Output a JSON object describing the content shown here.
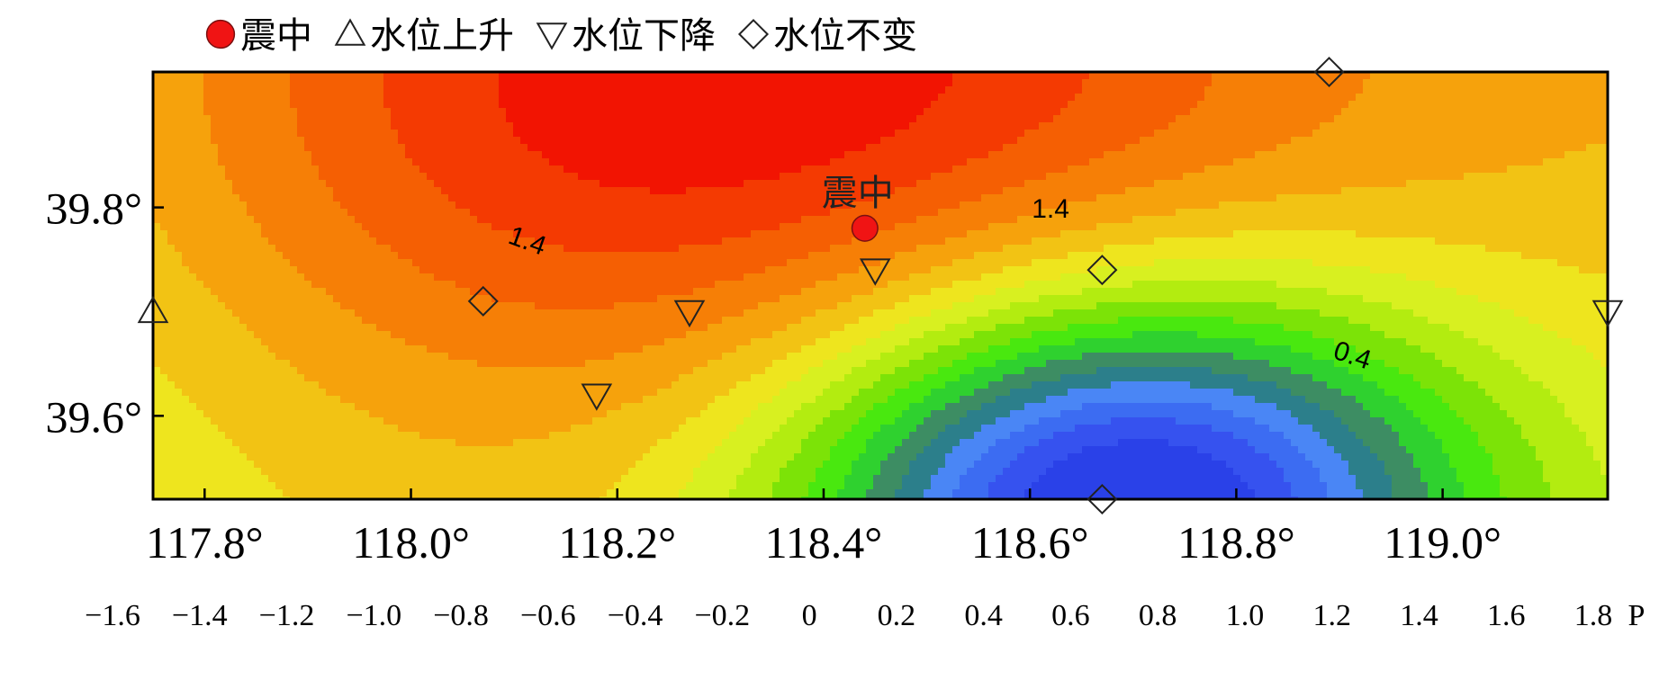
{
  "chart_data": {
    "type": "heatmap",
    "title": "",
    "x_axis": {
      "ticks": [
        117.8,
        118.0,
        118.2,
        118.4,
        118.6,
        118.8,
        119.0
      ],
      "tick_labels": [
        "117.8°",
        "118.0°",
        "118.2°",
        "118.4°",
        "118.6°",
        "118.8°",
        "119.0°"
      ],
      "range": [
        117.75,
        119.16
      ]
    },
    "y_axis": {
      "ticks": [
        39.6,
        39.8
      ],
      "tick_labels": [
        "39.6°",
        "39.8°"
      ],
      "range": [
        39.52,
        39.93
      ]
    },
    "legend": {
      "placement": "top-left",
      "entries": [
        {
          "marker": "filled-circle",
          "label": "震中"
        },
        {
          "marker": "triangle-up",
          "label": "水位上升"
        },
        {
          "marker": "triangle-down",
          "label": "水位下降"
        },
        {
          "marker": "diamond",
          "label": "水位不变"
        }
      ]
    },
    "epicenter": {
      "lon": 118.44,
      "lat": 39.78,
      "label": "震中"
    },
    "stations": [
      {
        "lon": 117.75,
        "lat": 39.7,
        "type": "triangle-up"
      },
      {
        "lon": 118.07,
        "lat": 39.71,
        "type": "diamond"
      },
      {
        "lon": 118.18,
        "lat": 39.62,
        "type": "triangle-down"
      },
      {
        "lon": 118.27,
        "lat": 39.7,
        "type": "triangle-down"
      },
      {
        "lon": 118.45,
        "lat": 39.74,
        "type": "triangle-down"
      },
      {
        "lon": 118.67,
        "lat": 39.74,
        "type": "diamond"
      },
      {
        "lon": 118.67,
        "lat": 39.52,
        "type": "diamond"
      },
      {
        "lon": 118.89,
        "lat": 39.93,
        "type": "diamond"
      },
      {
        "lon": 119.16,
        "lat": 39.7,
        "type": "triangle-down"
      }
    ],
    "contour_labels": [
      {
        "text": "1.4",
        "lon": 118.11,
        "lat": 39.76,
        "angle": 20
      },
      {
        "text": "1.4",
        "lon": 118.62,
        "lat": 39.79,
        "angle": 0
      },
      {
        "text": "0.4",
        "lon": 118.91,
        "lat": 39.65,
        "angle": 18
      }
    ],
    "field": {
      "epicenter_high": {
        "lon": 118.44,
        "lat": 39.92,
        "value": 1.9
      },
      "low_center": {
        "lon": 118.69,
        "lat": 39.52,
        "value": -1.6
      }
    },
    "color_scale": {
      "values": [
        -1.6,
        -1.4,
        -1.2,
        -1.0,
        -0.8,
        -0.6,
        -0.4,
        -0.2,
        0,
        0.2,
        0.4,
        0.6,
        0.8,
        1.0,
        1.2,
        1.4,
        1.6,
        1.8
      ],
      "labels": [
        "−1.6",
        "−1.4",
        "−1.2",
        "−1.0",
        "−0.8",
        "−0.6",
        "−0.4",
        "−0.2",
        "0",
        "0.2",
        "0.4",
        "0.6",
        "0.8",
        "1.0",
        "1.2",
        "1.4",
        "1.6",
        "1.8"
      ],
      "colors": [
        "#2a41e8",
        "#3652ef",
        "#3c6cf2",
        "#4a86f5",
        "#2c7f8b",
        "#3d8d63",
        "#2fd12f",
        "#49e80f",
        "#7ce307",
        "#b3ec10",
        "#d8f020",
        "#eee51e",
        "#f2c314",
        "#f6a20c",
        "#f67f06",
        "#f55f03",
        "#f43a02",
        "#f21402"
      ],
      "unit": "P"
    }
  }
}
